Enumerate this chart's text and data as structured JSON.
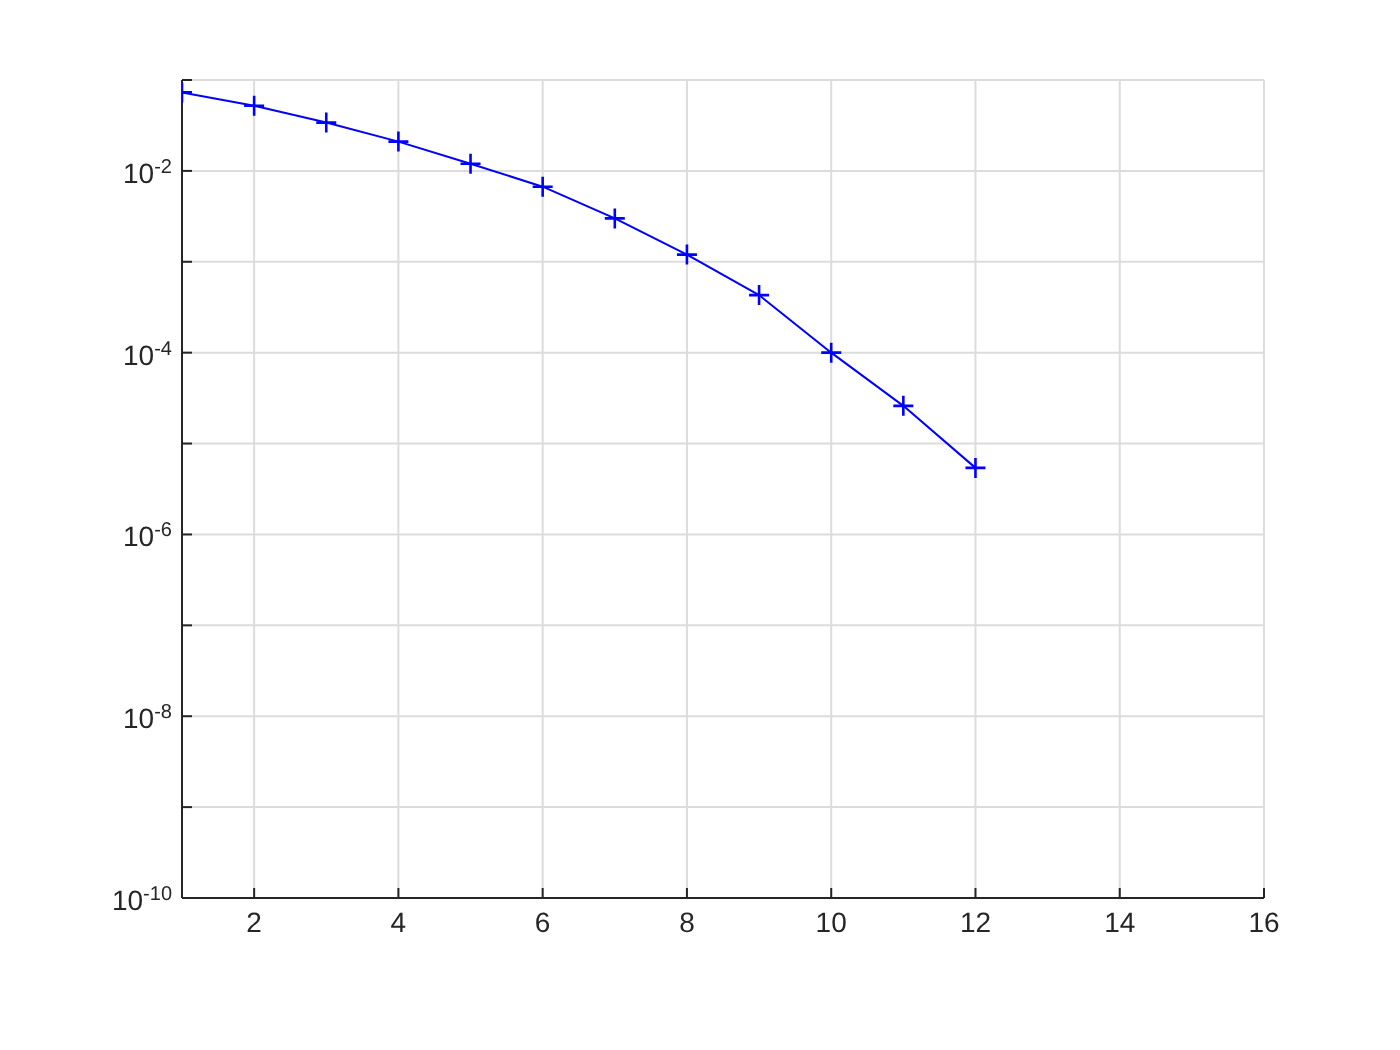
{
  "chart_data": {
    "type": "line",
    "x": [
      1,
      2,
      3,
      4,
      5,
      6,
      7,
      8,
      9,
      10,
      11,
      12
    ],
    "series": [
      {
        "color": "#0000ff",
        "values": [
          0.073,
          0.052,
          0.034,
          0.021,
          0.012,
          0.0067,
          0.003,
          0.0012,
          0.00043,
          0.0001,
          2.6e-05,
          5.4e-06
        ]
      }
    ],
    "xlim": [
      1,
      16
    ],
    "xticks": [
      {
        "value": 1,
        "label": null
      },
      2,
      4,
      6,
      8,
      10,
      12,
      14,
      16
    ],
    "ylim": [
      1e-10,
      0.1
    ],
    "yticks": [
      {
        "value": 1e-10,
        "label": "10$^{-10}$"
      },
      {
        "value": 1e-09,
        "label": null
      },
      {
        "value": 1e-08,
        "label": "10$^{-8}$"
      },
      {
        "value": 1e-07,
        "label": null
      },
      {
        "value": 1e-06,
        "label": "10$^{-6}$"
      },
      {
        "value": 1e-05,
        "label": null
      },
      {
        "value": 0.0001,
        "label": "10$^{-4}$"
      },
      {
        "value": 0.001,
        "label": null
      },
      {
        "value": 0.01,
        "label": "10$^{-2}$"
      },
      {
        "value": 0.1,
        "label": null
      }
    ],
    "log": "y",
    "grid": true,
    "marker": "cross",
    "line_style": "solid"
  }
}
